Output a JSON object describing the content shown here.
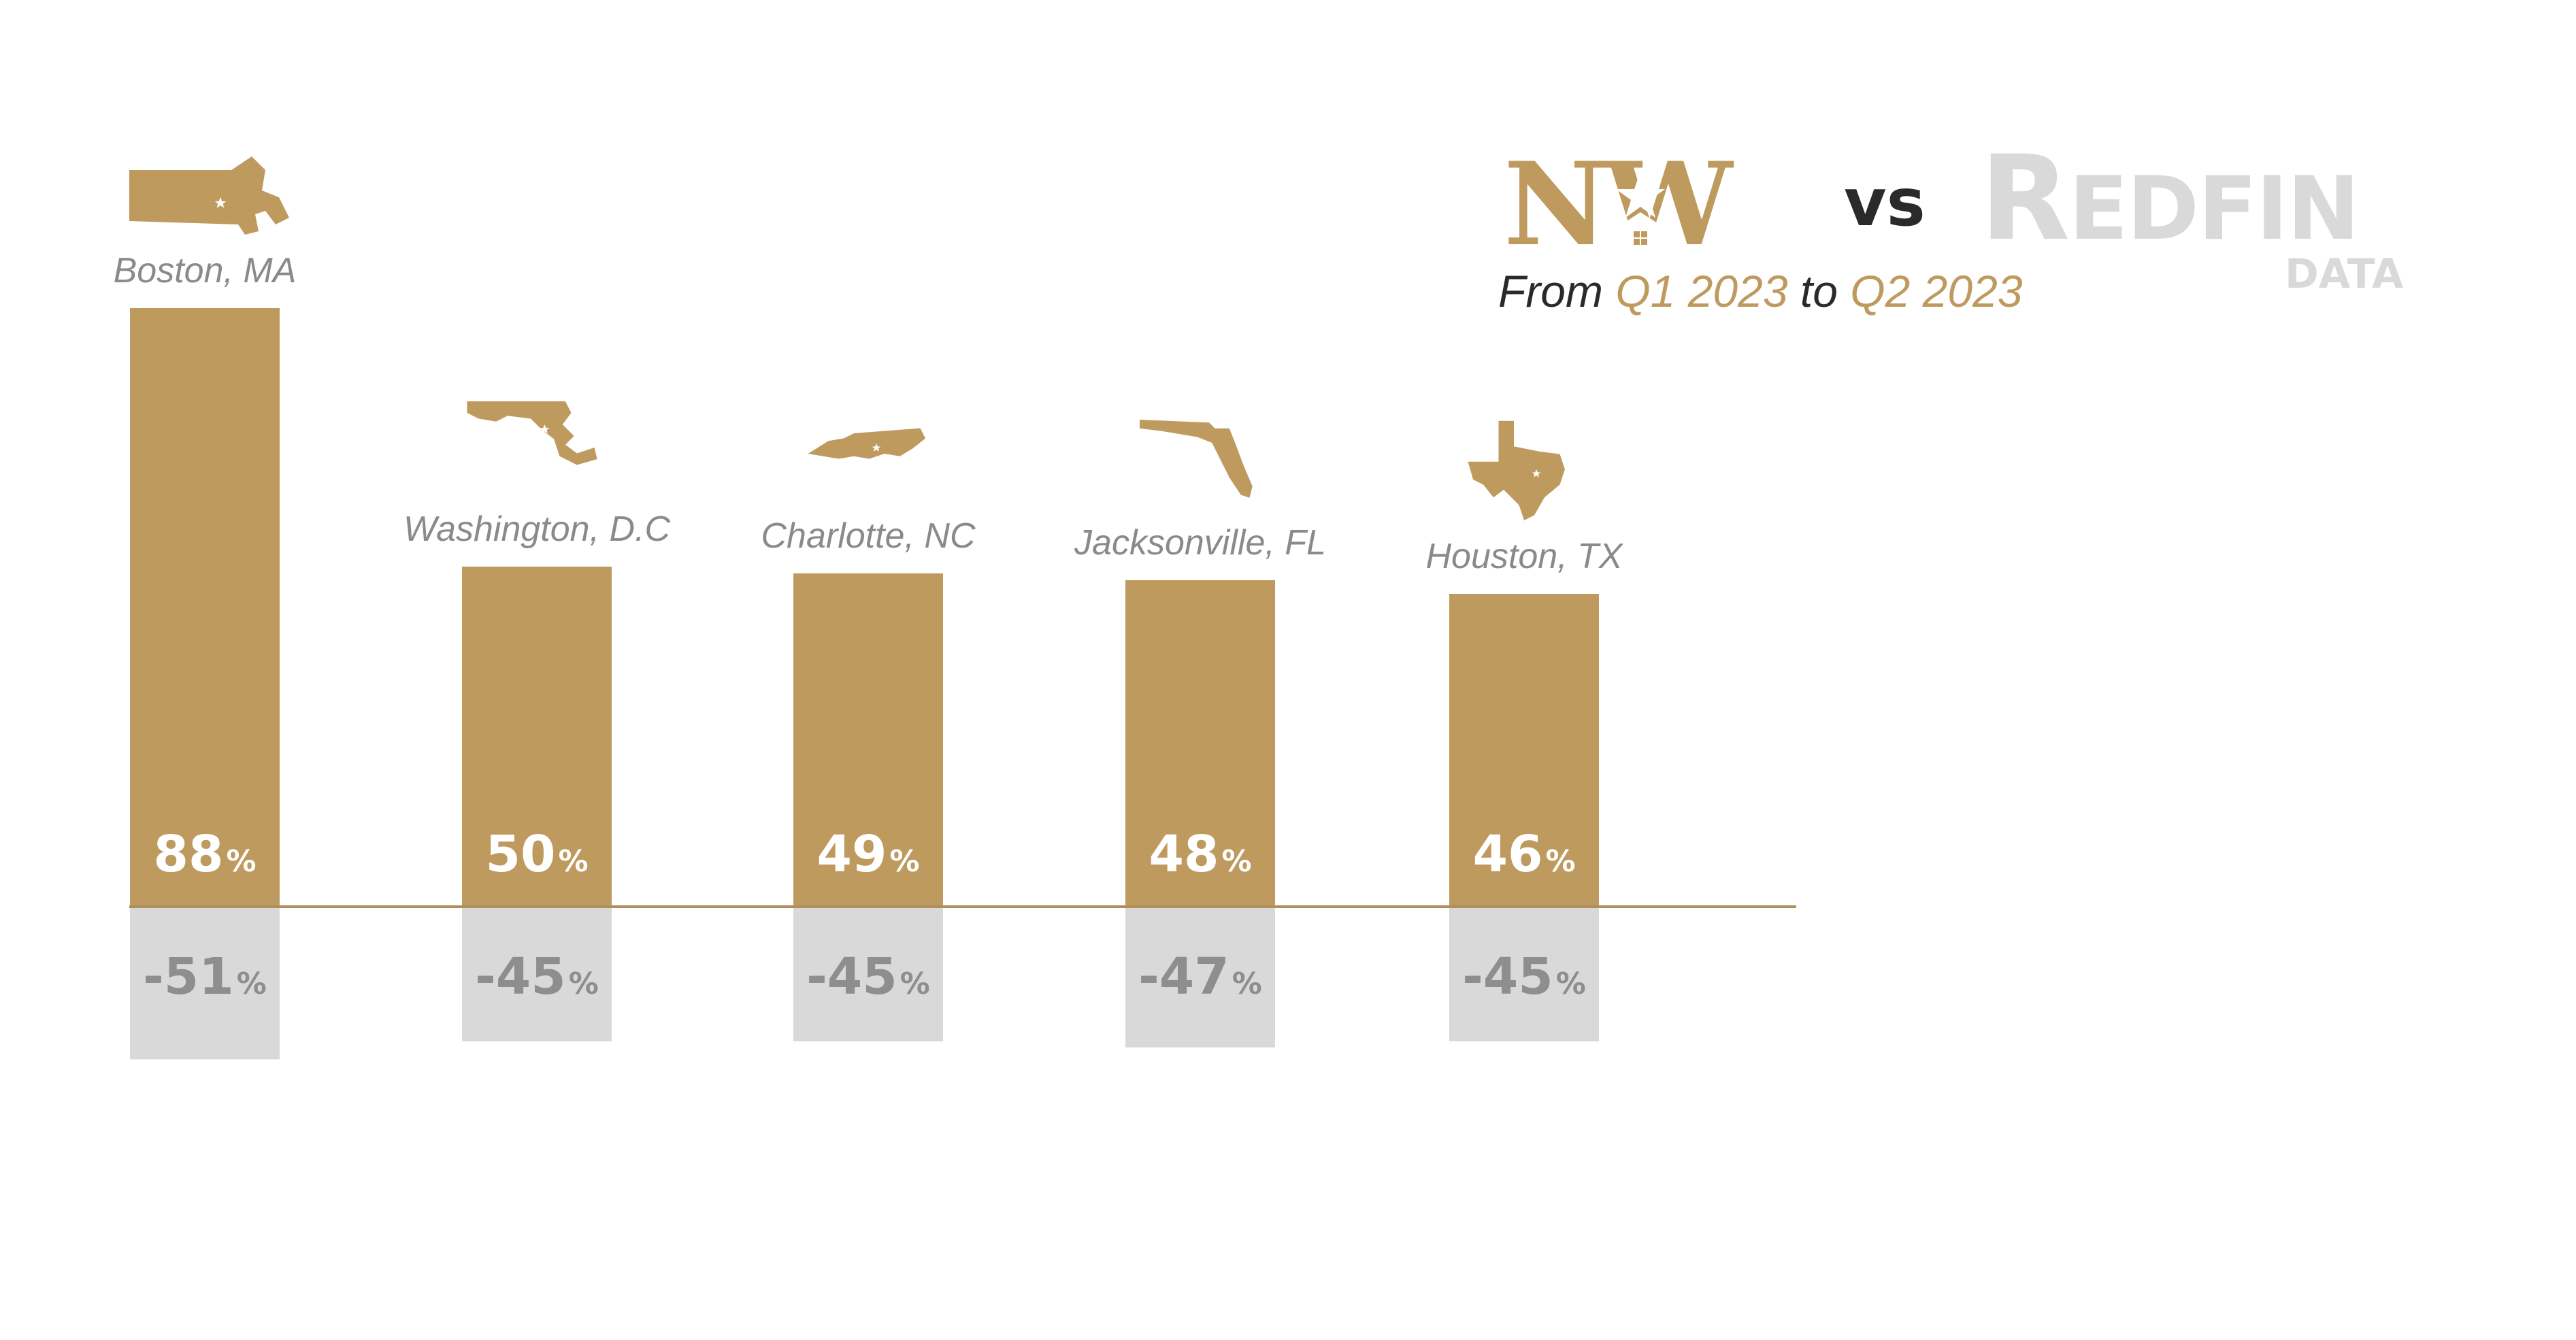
{
  "header": {
    "brand_left": "NW",
    "vs": "vs",
    "brand_right_first": "R",
    "brand_right_rest": "EDFIN",
    "brand_right_sub": "DATA",
    "period_from_word": "From",
    "period_from": "Q1 2023",
    "period_to_word": "to",
    "period_to": "Q2 2023"
  },
  "colors": {
    "nw_gold": "#bf9a5f",
    "redfin_gray": "#d9d9d9",
    "label_gray": "#8a8a8a",
    "dark": "#2a2a2a"
  },
  "chart_data": {
    "type": "bar",
    "title": "",
    "xlabel": "",
    "ylabel": "",
    "categories": [
      "Boston, MA",
      "Washington, D.C",
      "Charlotte, NC",
      "Jacksonville, FL",
      "Houston, TX"
    ],
    "icons": [
      "massachusetts-icon",
      "maryland-icon",
      "north-carolina-icon",
      "florida-icon",
      "texas-icon"
    ],
    "series": [
      {
        "values": [
          88,
          50,
          49,
          48,
          46
        ],
        "display": [
          "88",
          "50",
          "49",
          "48",
          "46"
        ],
        "color": "#bf9a5f"
      },
      {
        "values": [
          -51,
          -45,
          -45,
          -47,
          -45
        ],
        "display": [
          "-51",
          "-45",
          "-45",
          "-47",
          "-45"
        ],
        "color": "#d9d9d9"
      }
    ],
    "unit": "%",
    "baseline": 0,
    "grid": false,
    "legend": "none"
  }
}
